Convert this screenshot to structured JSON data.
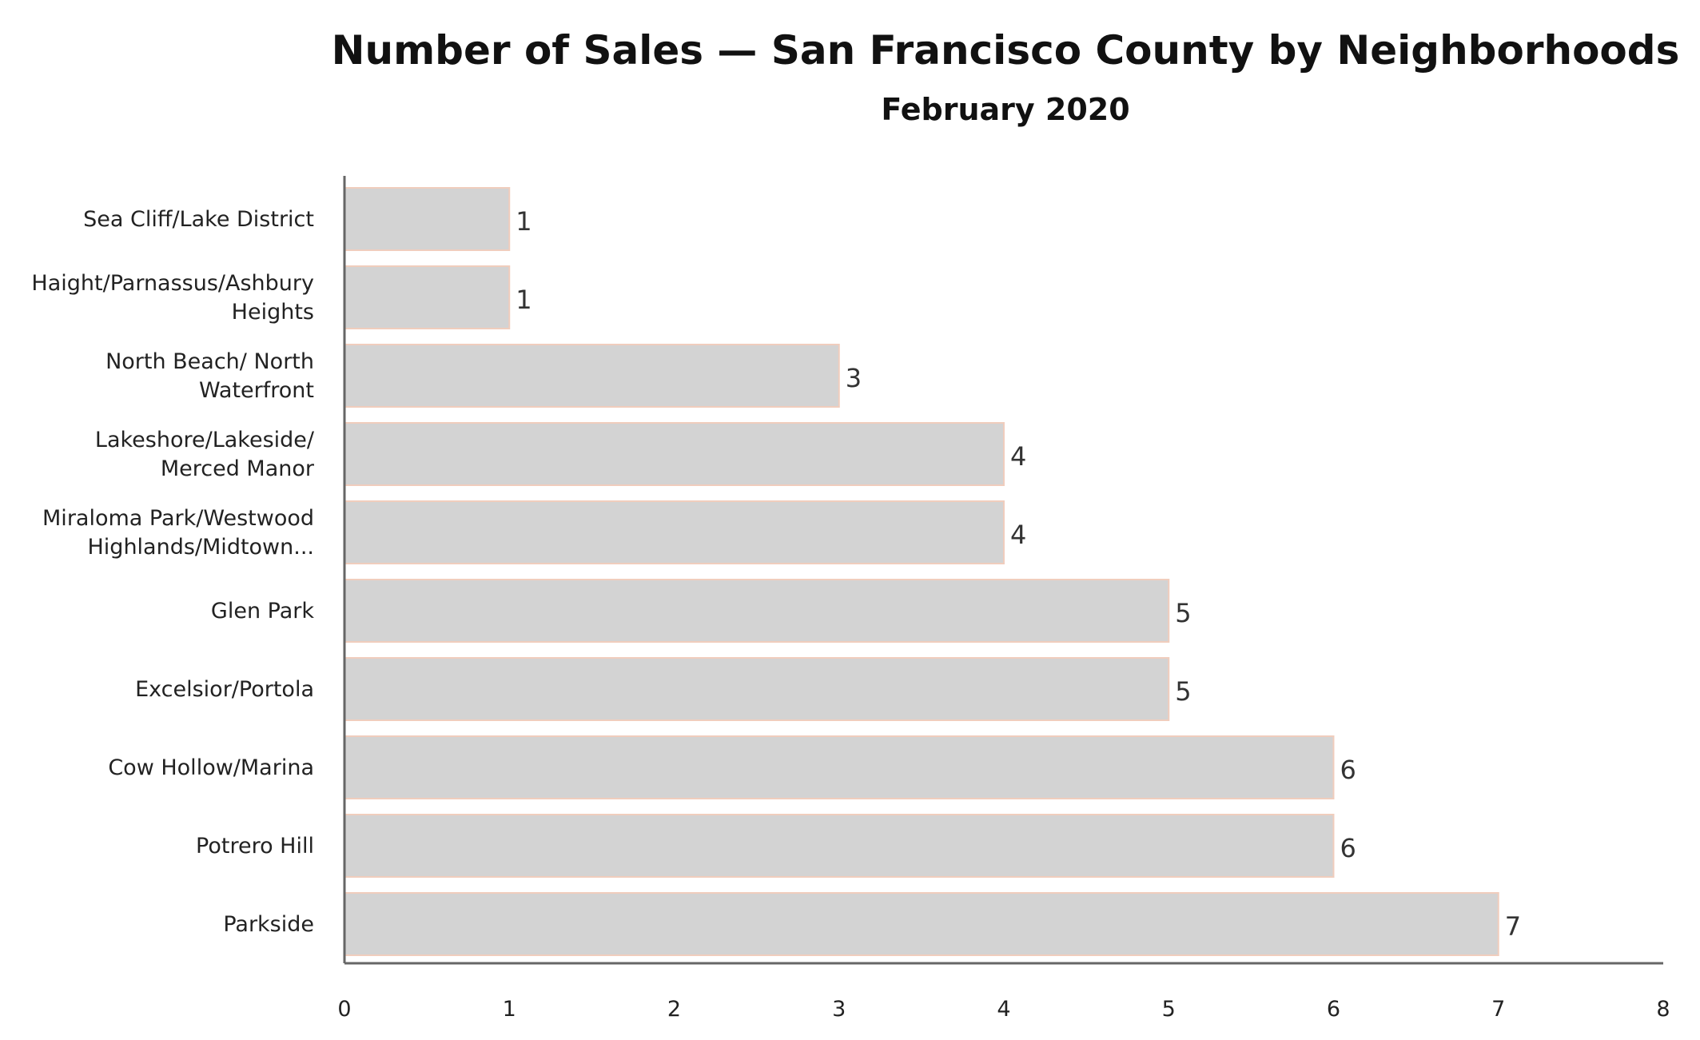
{
  "chart_data": {
    "type": "bar",
    "orientation": "horizontal",
    "title": "Number of Sales — San Francisco County by Neighborhoods",
    "subtitle": "February 2020",
    "categories": [
      [
        "Sea Cliff/Lake District"
      ],
      [
        "Haight/Parnassus/Ashbury",
        "Heights"
      ],
      [
        "North Beach/ North",
        "Waterfront"
      ],
      [
        "Lakeshore/Lakeside/",
        "Merced Manor"
      ],
      [
        "Miraloma Park/Westwood",
        "Highlands/Midtown..."
      ],
      [
        "Glen Park"
      ],
      [
        "Excelsior/Portola"
      ],
      [
        "Cow Hollow/Marina"
      ],
      [
        "Potrero Hill"
      ],
      [
        "Parkside"
      ]
    ],
    "values": [
      1,
      1,
      3,
      4,
      4,
      5,
      5,
      6,
      6,
      7
    ],
    "data_labels": [
      "1",
      "1",
      "3",
      "4",
      "4",
      "5",
      "5",
      "6",
      "6",
      "7"
    ],
    "xlim": [
      0,
      8
    ],
    "x_ticks": [
      "0",
      "1",
      "2",
      "3",
      "4",
      "5",
      "6",
      "7",
      "8"
    ],
    "xlabel": "",
    "ylabel": "",
    "grid": false,
    "legend": "none",
    "colors": {
      "bar_fill": "#d3d3d3",
      "bar_edge": "#f0cdbd",
      "axis": "#666666"
    }
  }
}
